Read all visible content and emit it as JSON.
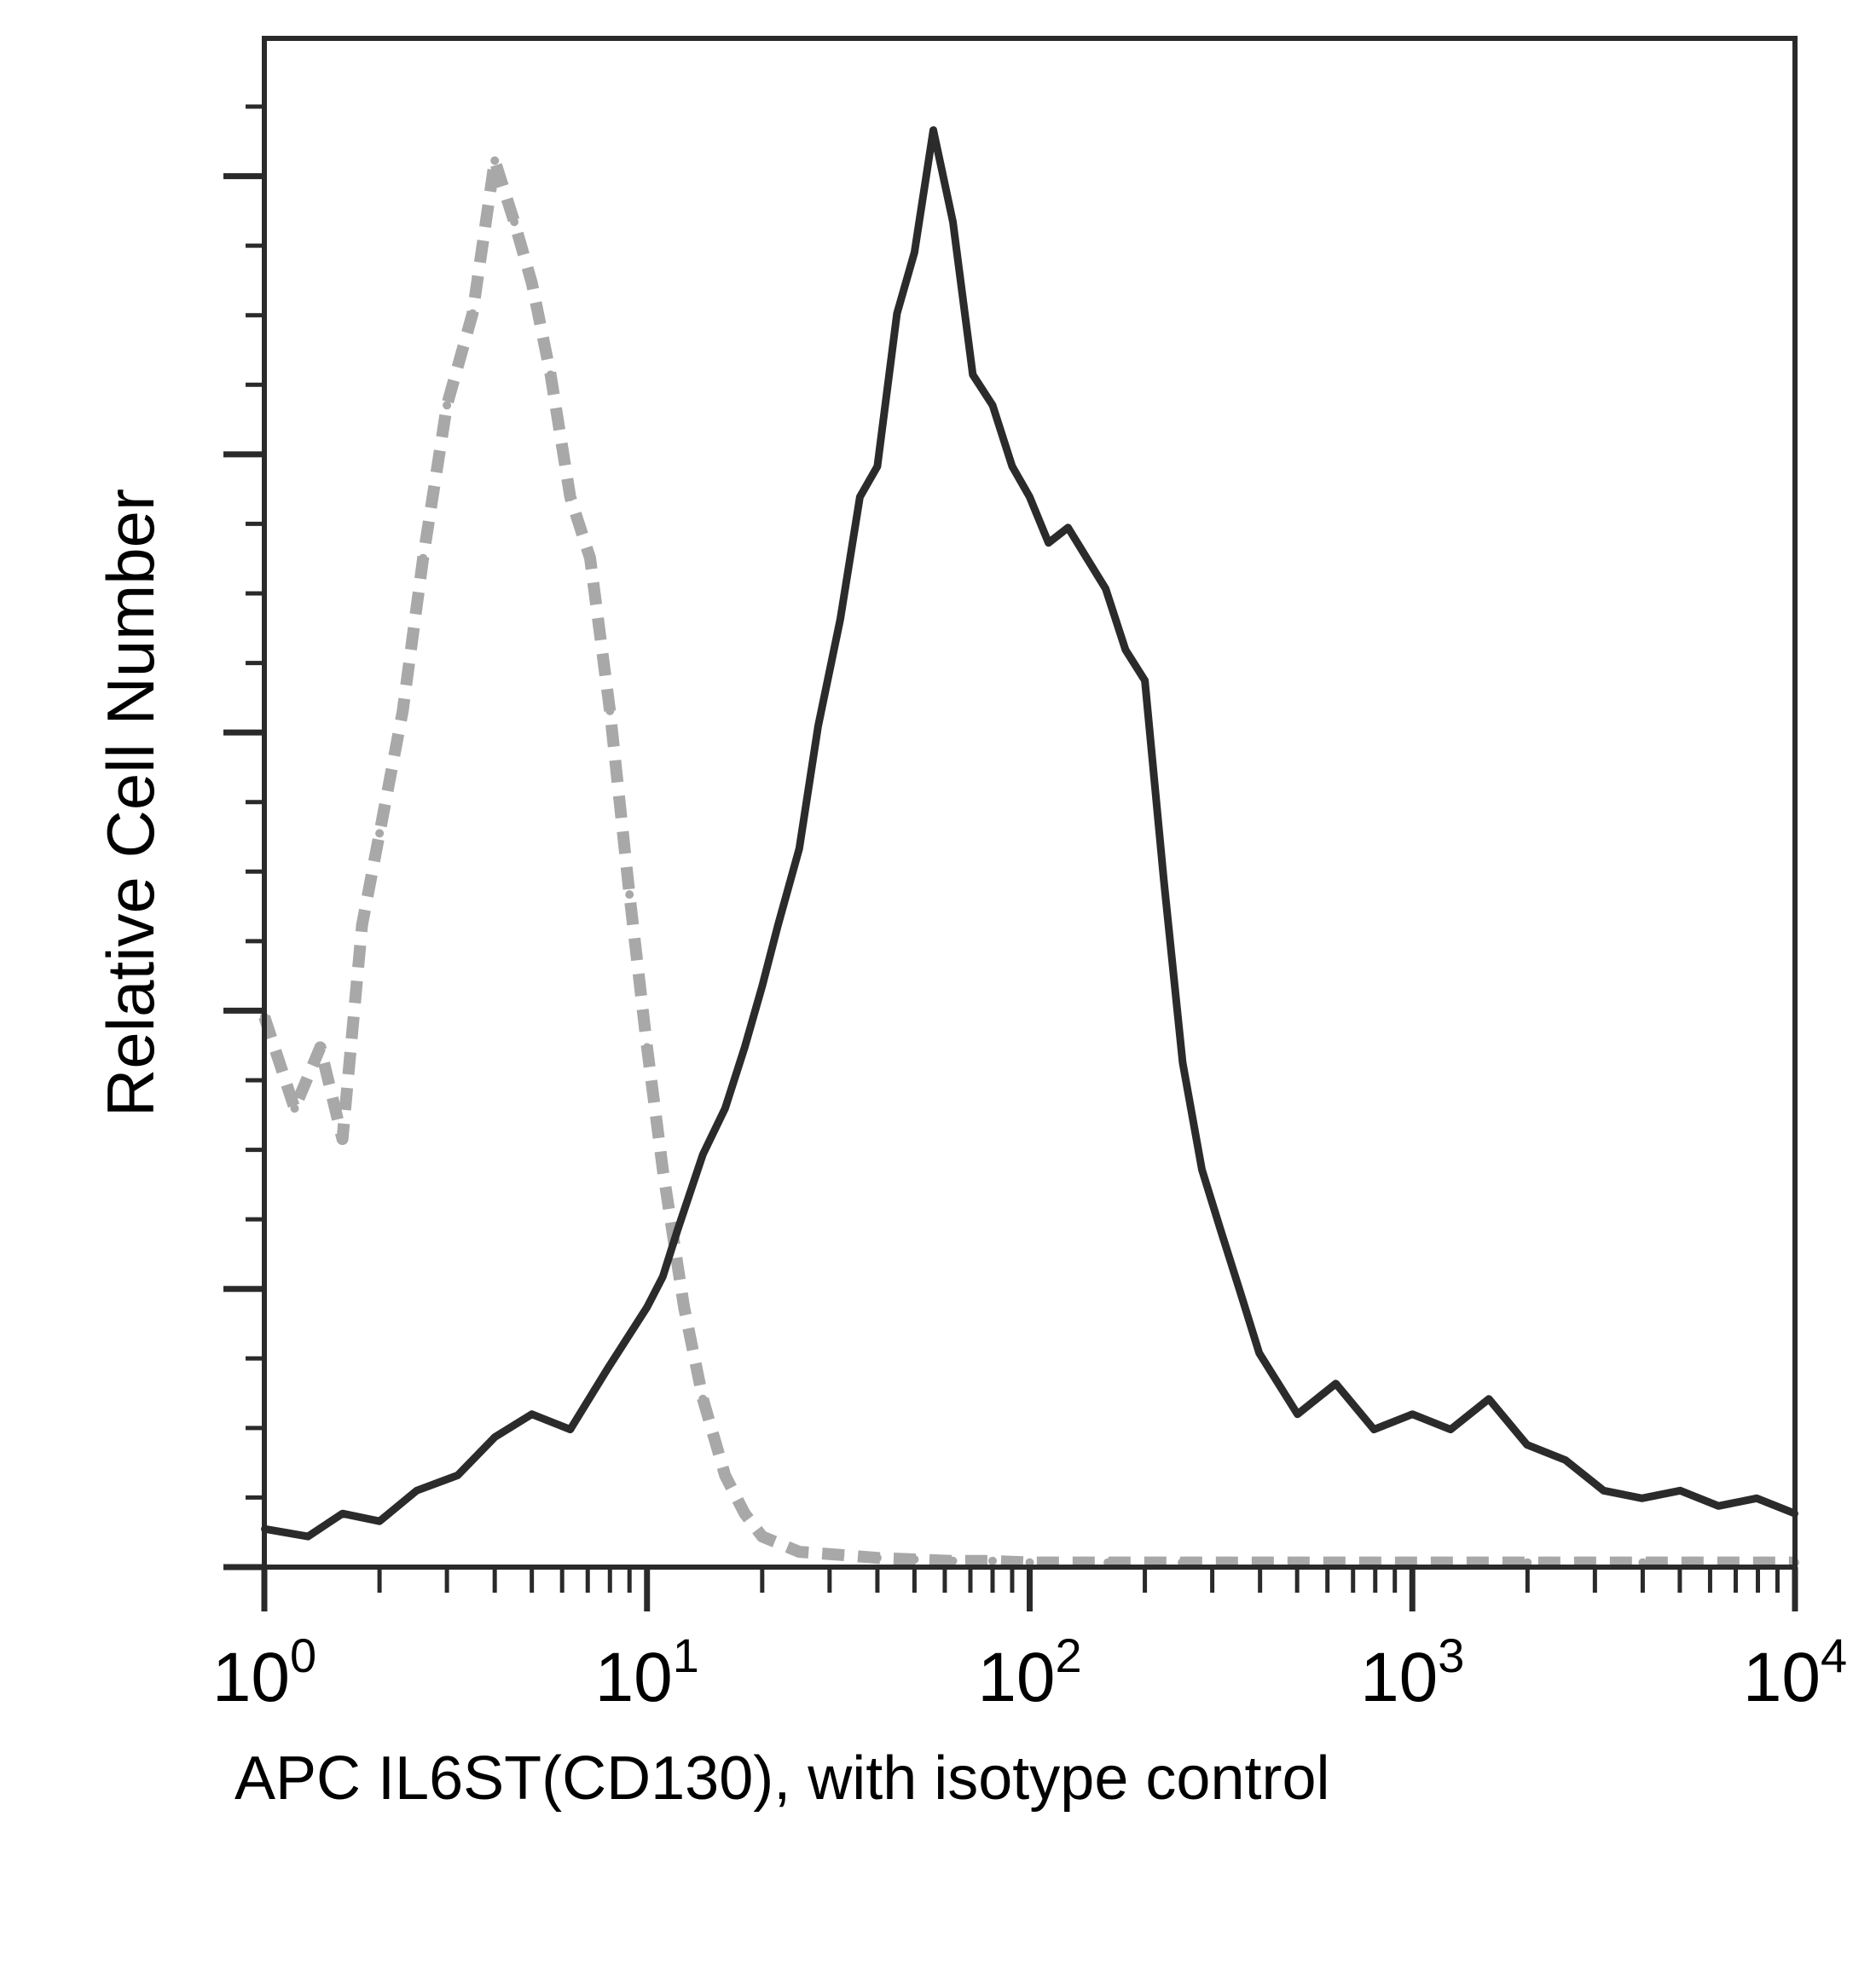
{
  "chart_data": {
    "type": "line",
    "title": "",
    "xlabel": "APC IL6ST(CD130), with isotype control",
    "ylabel": "Relative Cell Number",
    "x_scale": "log",
    "xlim": [
      1,
      10000
    ],
    "ylim": [
      0,
      100
    ],
    "grid": false,
    "legend": "none",
    "x_ticks": [
      {
        "value": 1,
        "base": "10",
        "exp": "0"
      },
      {
        "value": 10,
        "base": "10",
        "exp": "1"
      },
      {
        "value": 100,
        "base": "10",
        "exp": "2"
      },
      {
        "value": 1000,
        "base": "10",
        "exp": "3"
      },
      {
        "value": 10000,
        "base": "10",
        "exp": "4"
      }
    ],
    "series": [
      {
        "style": "dashed",
        "color": "#a8a8a8",
        "x": [
          1.0,
          1.2,
          1.4,
          1.6,
          1.8,
          2.0,
          2.3,
          2.6,
          3.0,
          3.5,
          4.0,
          4.5,
          5.0,
          5.6,
          6.3,
          7.1,
          8.0,
          9.0,
          10,
          11,
          12.5,
          14,
          16,
          18,
          20,
          25,
          32,
          40,
          50,
          63,
          80,
          100,
          160,
          250,
          400,
          630,
          1000,
          2000,
          4000,
          10000
        ],
        "y": [
          36,
          30,
          34,
          28,
          42,
          48,
          56,
          66,
          76,
          82,
          92,
          88,
          84,
          78,
          70,
          66,
          56,
          44,
          34,
          26,
          17,
          11,
          6,
          3.5,
          2.0,
          1.0,
          0.8,
          0.6,
          0.5,
          0.4,
          0.4,
          0.3,
          0.3,
          0.3,
          0.3,
          0.3,
          0.3,
          0.3,
          0.3,
          0.3
        ]
      },
      {
        "style": "solid",
        "color": "#2b2b2b",
        "x": [
          1.0,
          1.3,
          1.6,
          2.0,
          2.5,
          3.2,
          4.0,
          5.0,
          6.3,
          7.9,
          10,
          11,
          12,
          14,
          16,
          18,
          20,
          22,
          25,
          28,
          32,
          36,
          40,
          45,
          50,
          56,
          63,
          71,
          80,
          90,
          100,
          112,
          126,
          141,
          158,
          178,
          200,
          224,
          251,
          282,
          316,
          355,
          398,
          501,
          631,
          794,
          1000,
          1259,
          1585,
          1995,
          2512,
          3162,
          3981,
          5012,
          6310,
          7943,
          10000
        ],
        "y": [
          2.5,
          2.0,
          3.5,
          3.0,
          5.0,
          6.0,
          8.5,
          10.0,
          9.0,
          13.0,
          17.0,
          19.0,
          22.0,
          27.0,
          30.0,
          34.0,
          38.0,
          42.0,
          47.0,
          55.0,
          62.0,
          70.0,
          72.0,
          82.0,
          86.0,
          94.0,
          88.0,
          78.0,
          76.0,
          72.0,
          70.0,
          67.0,
          68.0,
          66.0,
          64.0,
          60.0,
          58.0,
          45.0,
          33.0,
          26.0,
          22.0,
          18.0,
          14.0,
          10.0,
          12.0,
          9.0,
          10.0,
          9.0,
          11.0,
          8.0,
          7.0,
          5.0,
          4.5,
          5.0,
          4.0,
          4.5,
          3.5
        ]
      }
    ]
  }
}
